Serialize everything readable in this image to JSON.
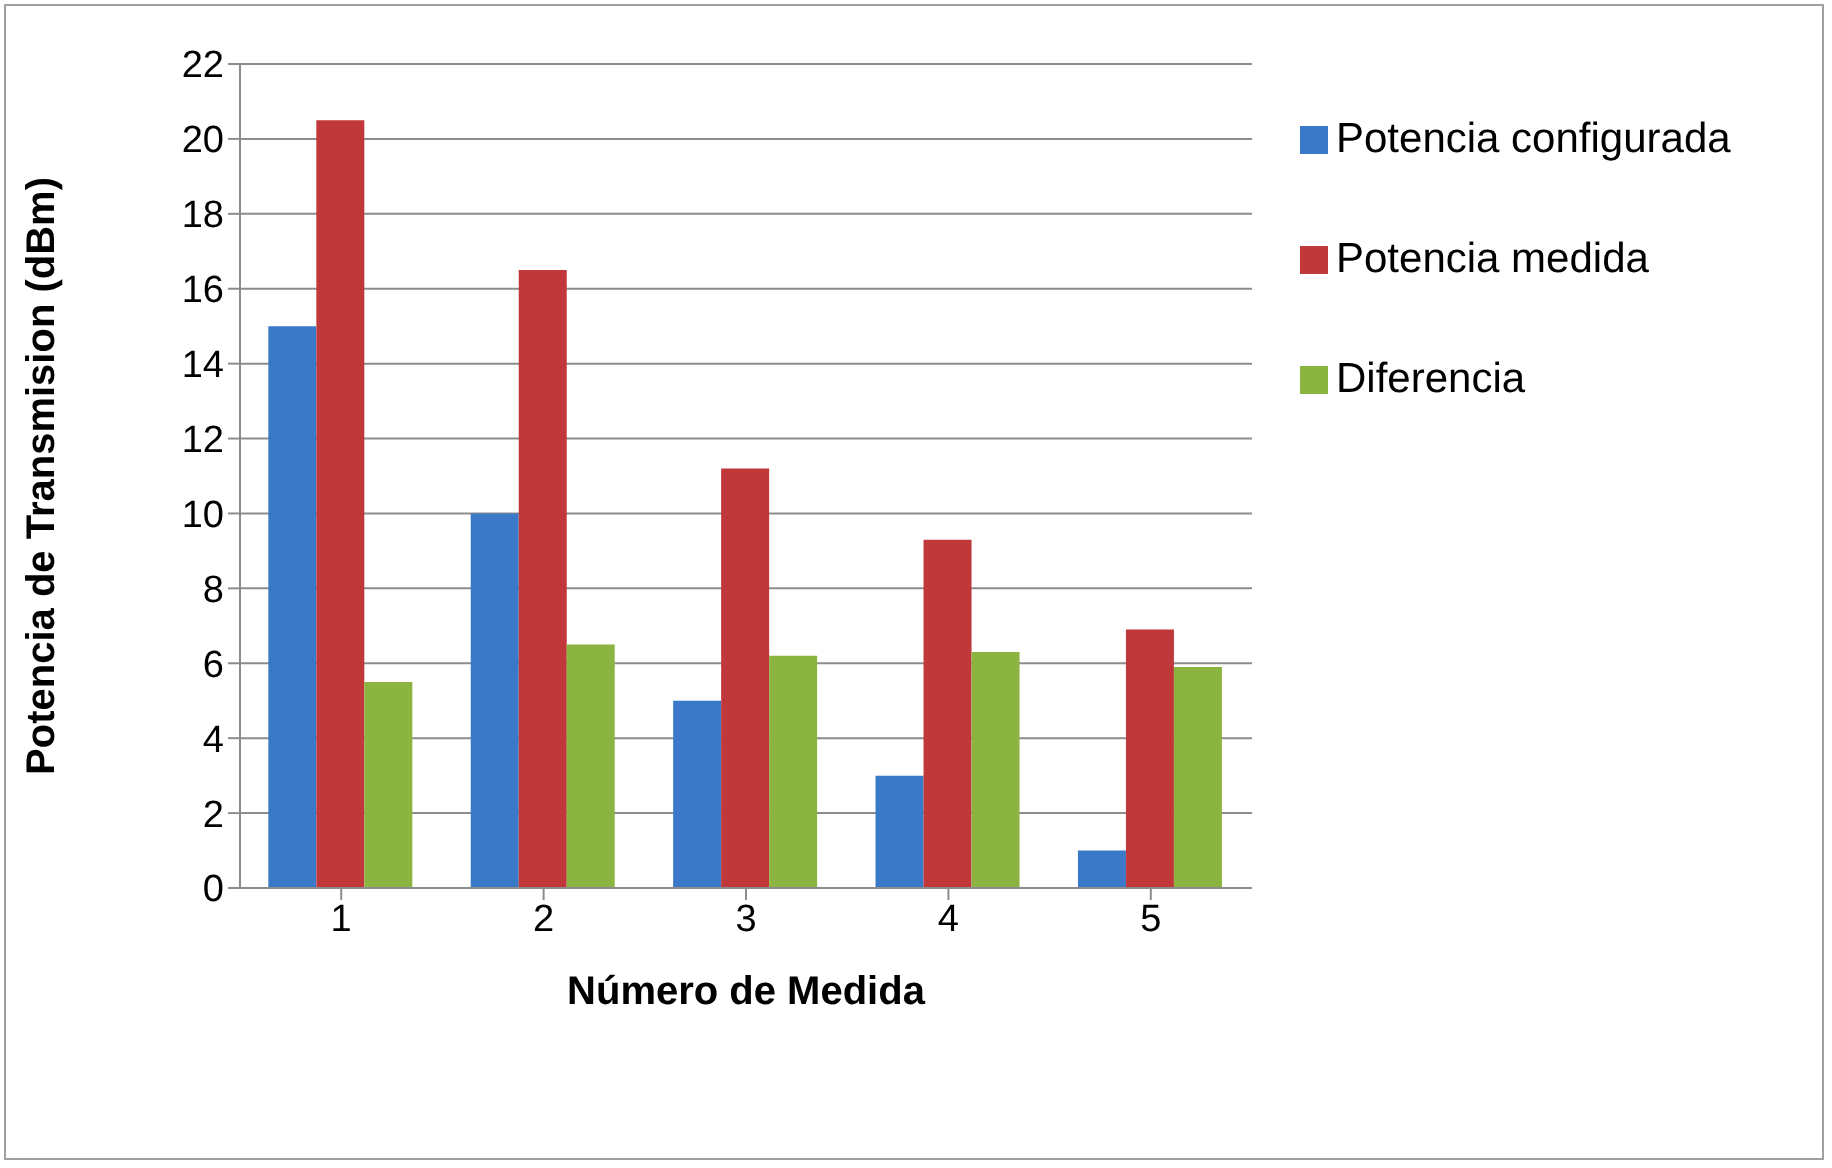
{
  "chart_data": {
    "type": "bar",
    "xlabel": "Número de Medida",
    "ylabel": "Potencia de Transmision (dBm)",
    "categories": [
      "1",
      "2",
      "3",
      "4",
      "5"
    ],
    "series": [
      {
        "name": "Potencia configurada",
        "color": "#3a78c8",
        "values": [
          15,
          10,
          5,
          3,
          1
        ]
      },
      {
        "name": "Potencia medida",
        "color": "#c0383a",
        "values": [
          20.5,
          16.5,
          11.2,
          9.3,
          6.9
        ]
      },
      {
        "name": "Diferencia",
        "color": "#8cb440",
        "values": [
          5.5,
          6.5,
          6.2,
          6.3,
          5.9
        ]
      }
    ],
    "ylim": [
      0,
      22
    ],
    "yticks": [
      0,
      2,
      4,
      6,
      8,
      10,
      12,
      14,
      16,
      18,
      20,
      22
    ],
    "grid": "y",
    "legend": "right"
  }
}
